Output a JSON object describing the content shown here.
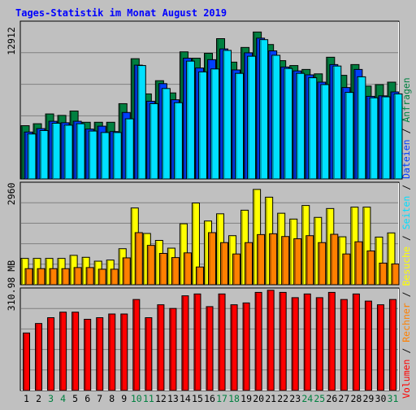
{
  "title": "Tages-Statistik im Monat August 2019",
  "colors": {
    "background": "#C0C0C0",
    "title": "#0000FF",
    "hits": "#008040",
    "files": "#0040FF",
    "pages": "#00E0FF",
    "visits": "#FFFF00",
    "sites": "#FF8000",
    "kbytes": "#FF0000",
    "weekend_label": "#008040",
    "day_label": "#000000",
    "grid": "#808080"
  },
  "right_labels": {
    "top": [
      {
        "text": "Anfragen",
        "color": "#008040"
      },
      {
        "text": " / ",
        "color": "#000000"
      },
      {
        "text": "Dateien",
        "color": "#0040FF"
      },
      {
        "text": " / ",
        "color": "#000000"
      },
      {
        "text": "Seiten",
        "color": "#00E0FF"
      },
      {
        "text": " / ",
        "color": "#000000"
      },
      {
        "text": "Besuche",
        "color": "#FFFF00"
      },
      {
        "text": " / ",
        "color": "#000000"
      },
      {
        "text": "Rechner",
        "color": "#FF8000"
      },
      {
        "text": " / ",
        "color": "#000000"
      },
      {
        "text": "Volumen",
        "color": "#FF0000"
      }
    ]
  },
  "chart_data": [
    {
      "type": "bar",
      "panel": "requests",
      "y_max_label": "12912",
      "ylim": [
        0,
        16140
      ],
      "categories": [
        "1",
        "2",
        "3",
        "4",
        "5",
        "6",
        "7",
        "8",
        "9",
        "10",
        "11",
        "12",
        "13",
        "14",
        "15",
        "16",
        "17",
        "18",
        "19",
        "20",
        "21",
        "22",
        "23",
        "24",
        "25",
        "26",
        "27",
        "28",
        "29",
        "30",
        "31"
      ],
      "weekend_days": [
        "3",
        "4",
        "10",
        "11",
        "17",
        "18",
        "24",
        "25",
        "31"
      ],
      "series": [
        {
          "name": "Anfragen",
          "values": [
            5450,
            5650,
            6650,
            6500,
            6950,
            5800,
            5800,
            5800,
            7700,
            12300,
            8700,
            10050,
            8800,
            13000,
            12350,
            12850,
            14350,
            11950,
            13450,
            15030,
            13750,
            12100,
            11600,
            11200,
            10750,
            12450,
            10600,
            11700,
            9500,
            9650,
            9900
          ]
        },
        {
          "name": "Dateien",
          "values": [
            4800,
            5150,
            5900,
            5750,
            5900,
            5100,
            5400,
            4850,
            6800,
            11640,
            7950,
            9750,
            8100,
            12350,
            11350,
            12200,
            13300,
            11150,
            12900,
            14400,
            13100,
            11450,
            11050,
            10650,
            9900,
            11700,
            9350,
            11200,
            8450,
            8500,
            8900
          ]
        },
        {
          "name": "Seiten",
          "values": [
            4600,
            4950,
            5700,
            5500,
            5650,
            4900,
            4750,
            4750,
            6150,
            11600,
            7700,
            9250,
            7800,
            12050,
            10950,
            11250,
            13150,
            10800,
            12550,
            14250,
            12650,
            11300,
            10800,
            10350,
            9650,
            11550,
            8850,
            10450,
            8300,
            8400,
            8700
          ]
        }
      ]
    },
    {
      "type": "bar",
      "panel": "visits",
      "y_max_label": "2960",
      "ylim": [
        0,
        3700
      ],
      "categories": [
        "1",
        "2",
        "3",
        "4",
        "5",
        "6",
        "7",
        "8",
        "9",
        "10",
        "11",
        "12",
        "13",
        "14",
        "15",
        "16",
        "17",
        "18",
        "19",
        "20",
        "21",
        "22",
        "23",
        "24",
        "25",
        "26",
        "27",
        "28",
        "29",
        "30",
        "31"
      ],
      "series": [
        {
          "name": "Besuche",
          "values": [
            950,
            950,
            950,
            950,
            1060,
            990,
            850,
            890,
            1300,
            2770,
            1850,
            1600,
            1320,
            2200,
            2950,
            2300,
            2560,
            1770,
            2690,
            3440,
            3160,
            2580,
            2370,
            2860,
            2430,
            2750,
            1730,
            2800,
            2800,
            1720,
            1870
          ]
        },
        {
          "name": "Rechner",
          "values": [
            580,
            580,
            580,
            580,
            620,
            620,
            560,
            560,
            970,
            1880,
            1420,
            1130,
            980,
            1150,
            640,
            1880,
            1520,
            1110,
            1520,
            1810,
            1840,
            1740,
            1660,
            1770,
            1520,
            1820,
            1110,
            1550,
            1220,
            780,
            750
          ]
        }
      ]
    },
    {
      "type": "bar",
      "panel": "volume",
      "y_max_label": "310.98 MB",
      "ylim": [
        0,
        388.7
      ],
      "categories": [
        "1",
        "2",
        "3",
        "4",
        "5",
        "6",
        "7",
        "8",
        "9",
        "10",
        "11",
        "12",
        "13",
        "14",
        "15",
        "16",
        "17",
        "18",
        "19",
        "20",
        "21",
        "22",
        "23",
        "24",
        "25",
        "26",
        "27",
        "28",
        "29",
        "30",
        "31"
      ],
      "series": [
        {
          "name": "Volumen",
          "values": [
            218,
            254,
            276,
            297,
            297,
            270,
            276,
            290,
            290,
            345,
            276,
            325,
            311,
            359,
            366,
            318,
            366,
            325,
            332,
            372,
            380,
            372,
            352,
            366,
            352,
            372,
            345,
            366,
            339,
            325,
            345
          ]
        }
      ]
    }
  ]
}
